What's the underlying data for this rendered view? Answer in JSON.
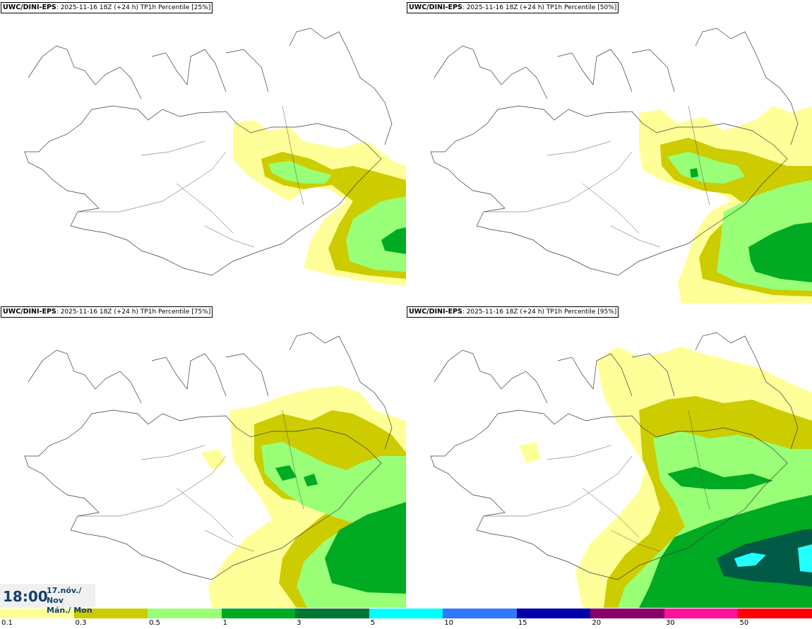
{
  "panels": [
    {
      "model": "UWC/DINI-EPS",
      "run": "2025-11-16 18Z (+24 h)",
      "label": "TP1h Percentile [25%]",
      "percentile": 25
    },
    {
      "model": "UWC/DINI-EPS",
      "run": "2025-11-16 18Z (+24 h)",
      "label": "TP1h Percentile [50%]",
      "percentile": 50
    },
    {
      "model": "UWC/DINI-EPS",
      "run": "2025-11-16 18Z (+24 h)",
      "label": "TP1h Percentile [75%]",
      "percentile": 75
    },
    {
      "model": "UWC/DINI-EPS",
      "run": "2025-11-16 18Z (+24 h)",
      "label": "TP1h Percentile [95%]",
      "percentile": 95
    }
  ],
  "valid_time": {
    "time": "18:00",
    "date_line1": "17.nóv./ Nov",
    "date_line2": "Mán./ Mon"
  },
  "legend": {
    "ticks": [
      "0.1",
      "0.3",
      "0.5",
      "1",
      "3",
      "5",
      "10",
      "15",
      "20",
      "30",
      "50"
    ],
    "colors": [
      "#ffff99",
      "#cccc00",
      "#99ff77",
      "#00aa22",
      "#007733",
      "#00ffff",
      "#3377ff",
      "#0000aa",
      "#880066",
      "#ff1199",
      "#ff0000"
    ]
  }
}
